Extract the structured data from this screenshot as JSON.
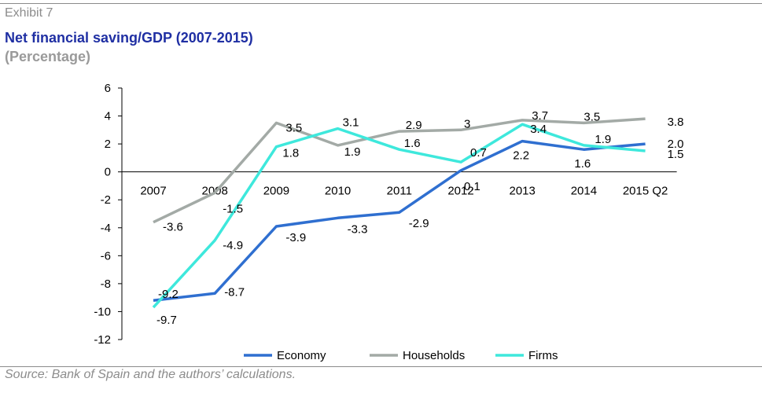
{
  "header": {
    "exhibit": "Exhibit 7",
    "title": "Net financial saving/GDP (2007-2015)",
    "subtitle": "(Percentage)"
  },
  "footer": {
    "source": "Source: Bank of Spain and the authors’ calculations."
  },
  "chart_data": {
    "type": "line",
    "categories": [
      "2007",
      "2008",
      "2009",
      "2010",
      "2011",
      "2012",
      "2013",
      "2014",
      "2015 Q2"
    ],
    "ylim": [
      -12,
      6
    ],
    "yticks": [
      6,
      4,
      2,
      0,
      -2,
      -4,
      -6,
      -8,
      -10,
      -12
    ],
    "grid": false,
    "legend_position": "bottom",
    "series": [
      {
        "name": "Economy",
        "color": "#2f6fd0",
        "values": [
          -9.2,
          -8.7,
          -3.9,
          -3.3,
          -2.9,
          0.1,
          2.2,
          1.6,
          2.0
        ],
        "labels": [
          "-9.2",
          "-8.7",
          "-3.9",
          "-3.3",
          "-2.9",
          "0.1",
          "2.2",
          "1.6",
          "2.0"
        ]
      },
      {
        "name": "Households",
        "color": "#a3aaa6",
        "values": [
          -3.6,
          -1.5,
          3.5,
          1.9,
          2.9,
          3.0,
          3.7,
          3.5,
          3.8
        ],
        "labels": [
          "-3.6",
          "-1.5",
          "3.5",
          "1.9",
          "2.9",
          "3",
          "3.7",
          "3.5",
          "3.8"
        ]
      },
      {
        "name": "Firms",
        "color": "#3ee8dc",
        "values": [
          -9.7,
          -4.9,
          1.8,
          3.1,
          1.6,
          0.7,
          3.4,
          1.9,
          1.5
        ],
        "labels": [
          "-9.7",
          "-4.9",
          "1.8",
          "3.1",
          "1.6",
          "0.7",
          "3.4",
          "1.9",
          "1.5"
        ]
      }
    ]
  }
}
